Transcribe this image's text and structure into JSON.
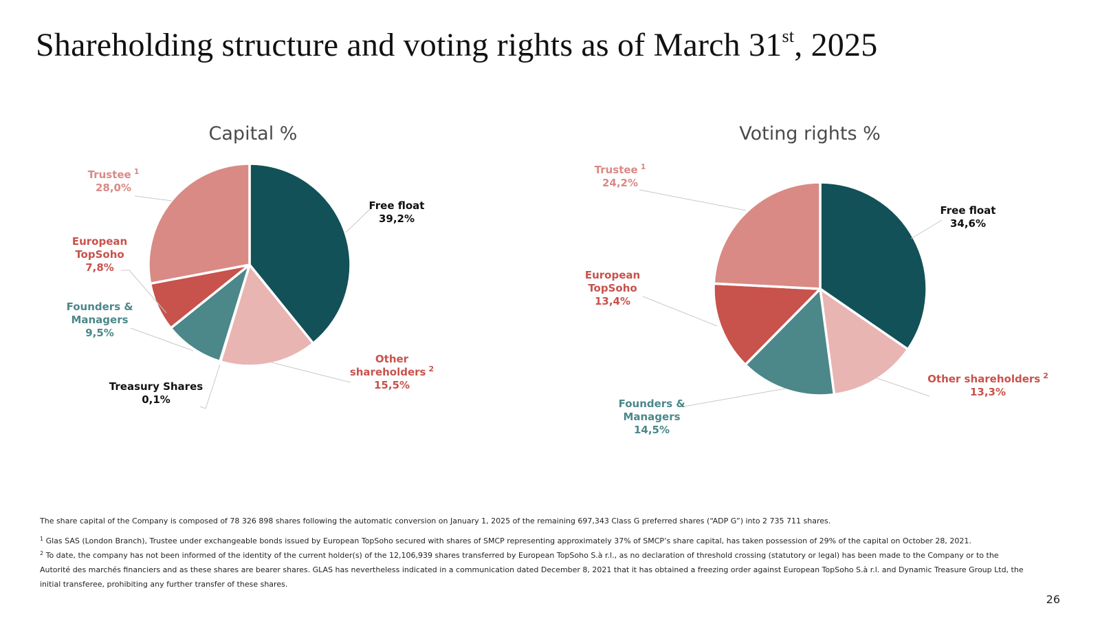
{
  "slide": {
    "title_main": "Shareholding structure and voting rights as of March 31",
    "title_sup": "st",
    "title_end": ", 2025",
    "page_number": "26"
  },
  "colors": {
    "free_float": "#125157",
    "other": "#e8b5b2",
    "treasury": "#111111",
    "founders": "#4c878a",
    "european": "#c8524c",
    "trustee": "#d98a84",
    "label_trustee": "#d98a84",
    "label_european": "#c8524c",
    "label_founders": "#4c878a",
    "label_other": "#c8524c",
    "label_dark": "#111111"
  },
  "chart_data": [
    {
      "type": "pie",
      "title": "Capital %",
      "slices": [
        {
          "label": "Free float",
          "label_lines": [
            "Free float"
          ],
          "value": 39.2,
          "display": "39,2%"
        },
        {
          "label": "Other shareholders",
          "label_lines": [
            "Other",
            "shareholders"
          ],
          "footnote": "2",
          "value": 15.5,
          "display": "15,5%"
        },
        {
          "label": "Treasury Shares",
          "label_lines": [
            "Treasury Shares"
          ],
          "value": 0.1,
          "display": "0,1%"
        },
        {
          "label": "Founders & Managers",
          "label_lines": [
            "Founders &",
            "Managers"
          ],
          "value": 9.5,
          "display": "9,5%"
        },
        {
          "label": "European TopSoho",
          "label_lines": [
            "European",
            "TopSoho"
          ],
          "value": 7.8,
          "display": "7,8%"
        },
        {
          "label": "Trustee",
          "label_lines": [
            "Trustee"
          ],
          "footnote": "1",
          "value": 28.0,
          "display": "28,0%"
        }
      ]
    },
    {
      "type": "pie",
      "title": "Voting rights %",
      "slices": [
        {
          "label": "Free float",
          "label_lines": [
            "Free float"
          ],
          "value": 34.6,
          "display": "34,6%"
        },
        {
          "label": "Other shareholders",
          "label_lines": [
            "Other shareholders"
          ],
          "footnote": "2",
          "value": 13.3,
          "display": "13,3%"
        },
        {
          "label": "Founders & Managers",
          "label_lines": [
            "Founders &",
            "Managers"
          ],
          "value": 14.5,
          "display": "14,5%"
        },
        {
          "label": "European TopSoho",
          "label_lines": [
            "European",
            "TopSoho"
          ],
          "value": 13.4,
          "display": "13,4%"
        },
        {
          "label": "Trustee",
          "label_lines": [
            "Trustee"
          ],
          "footnote": "1",
          "value": 24.2,
          "display": "24,2%"
        }
      ]
    }
  ],
  "footnotes": {
    "capital_note": "The share capital of the Company is composed of 78 326 898 shares following the automatic conversion on January 1, 2025 of the remaining 697,343 Class G preferred shares (“ADP G”) into 2 735 711 shares.",
    "note1_mark": "1",
    "note1_text": " Glas SAS (London Branch), Trustee under exchangeable bonds issued by European TopSoho secured with shares of SMCP representing approximately 37% of SMCP’s share capital, has taken possession of 29% of the capital on October 28, 2021.",
    "note2_mark": "2",
    "note2_text": " To date, the company has not been informed of the identity of the current holder(s) of the 12,106,939 shares transferred by European TopSoho S.à r.l., as no declaration of threshold crossing (statutory or legal) has been made to the Company or to the Autorité des marchés financiers and as these shares are bearer shares. GLAS has nevertheless indicated in a communication dated December 8, 2021 that it has obtained a freezing order against European TopSoho S.à r.l. and Dynamic Treasure Group Ltd, the initial transferee, prohibiting any further transfer of these shares."
  }
}
